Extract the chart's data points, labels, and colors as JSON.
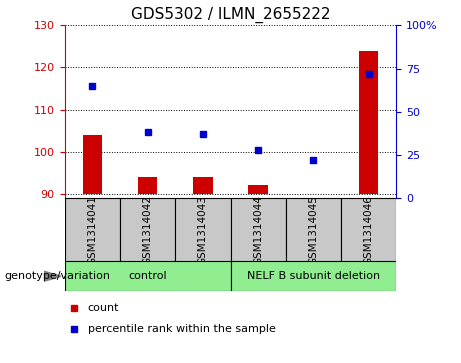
{
  "title": "GDS5302 / ILMN_2655222",
  "samples": [
    "GSM1314041",
    "GSM1314042",
    "GSM1314043",
    "GSM1314044",
    "GSM1314045",
    "GSM1314046"
  ],
  "count_values": [
    104,
    94,
    94,
    92,
    90,
    124
  ],
  "percentile_values": [
    65,
    38,
    37,
    28,
    22,
    72
  ],
  "ylim_left": [
    89,
    130
  ],
  "ylim_right": [
    0,
    100
  ],
  "yticks_left": [
    90,
    100,
    110,
    120,
    130
  ],
  "yticks_right": [
    0,
    25,
    50,
    75,
    100
  ],
  "bar_color": "#cc0000",
  "dot_color": "#0000cc",
  "bar_bottom": 90,
  "group_control_label": "control",
  "group_deletion_label": "NELF B subunit deletion",
  "group_color": "#90ee90",
  "sample_box_color": "#c8c8c8",
  "legend_count_label": "count",
  "legend_percentile_label": "percentile rank within the sample",
  "xlabel_annotation": "genotype/variation",
  "title_fontsize": 11,
  "tick_fontsize": 8,
  "label_fontsize": 8,
  "group_fontsize": 8
}
